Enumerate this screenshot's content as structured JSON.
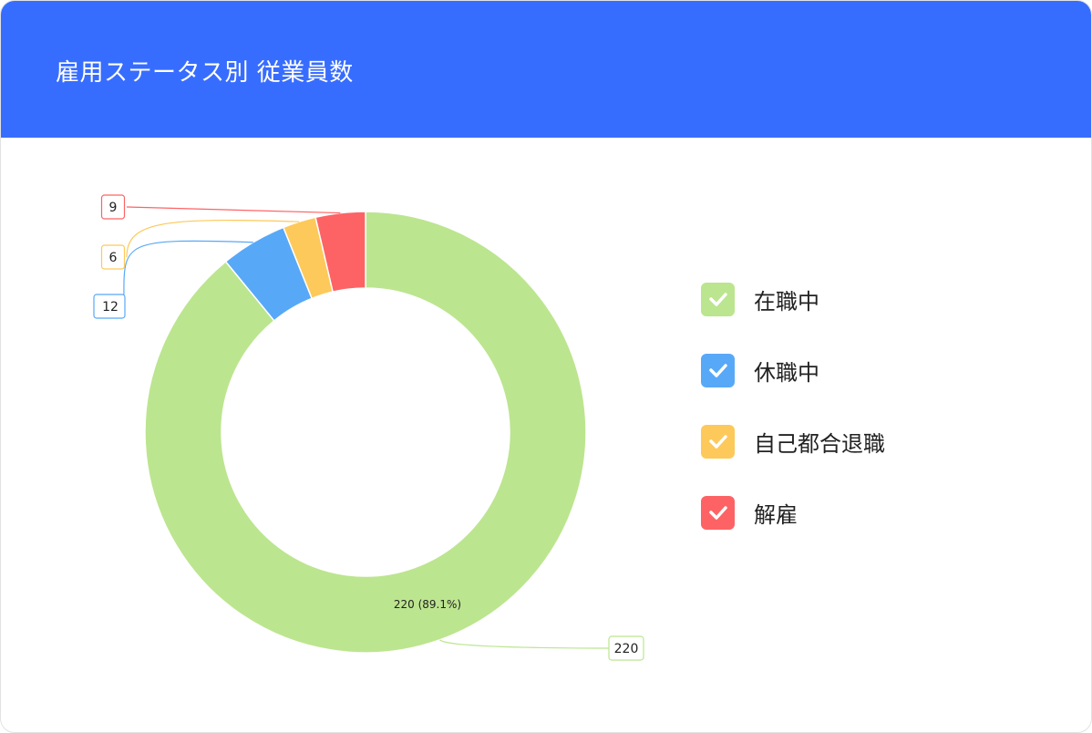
{
  "header": {
    "title": "雇用ステータス別 従業員数"
  },
  "colors": {
    "header": "#376dff"
  },
  "chart_data": {
    "type": "pie",
    "variant": "donut",
    "categories": [
      "在職中",
      "休職中",
      "自己都合退職",
      "解雇"
    ],
    "values": [
      220,
      12,
      6,
      9
    ],
    "colors": [
      "#bce58f",
      "#58a8f8",
      "#fdc95a",
      "#fd6365"
    ],
    "data_labels": [
      "220",
      "12",
      "6",
      "9"
    ],
    "inner_label": "220 (89.1%)",
    "legend_position": "right",
    "legend_icon": "check-icon"
  }
}
